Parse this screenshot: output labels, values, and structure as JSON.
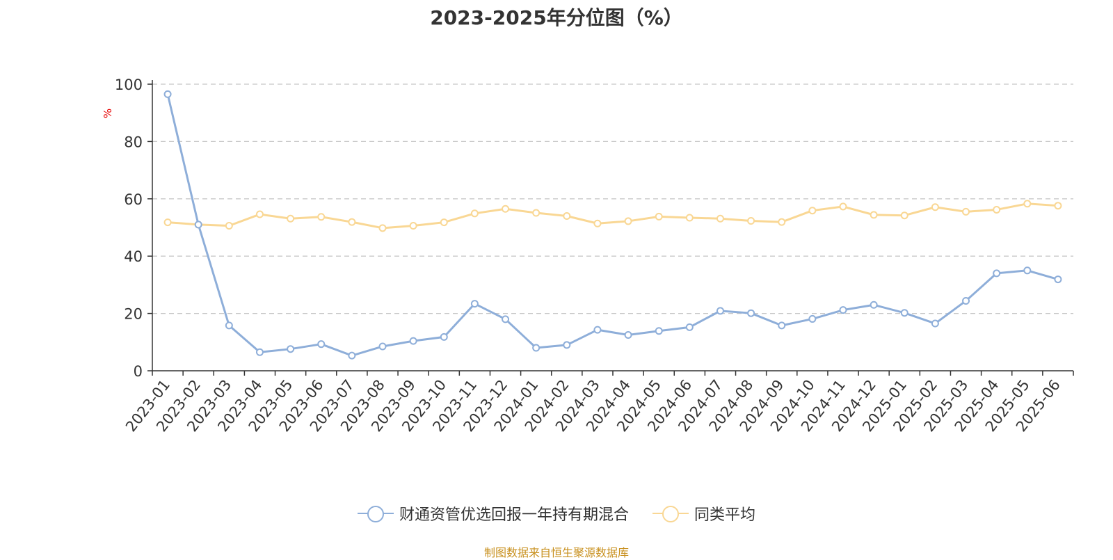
{
  "chart_data": {
    "type": "line",
    "title": "2023-2025年分位图（%）",
    "ylabel": "%",
    "ylim": [
      0,
      100
    ],
    "yticks": [
      0,
      20,
      40,
      60,
      80,
      100
    ],
    "grid": true,
    "legend_position": "bottom",
    "categories": [
      "2023-01",
      "2023-02",
      "2023-03",
      "2023-04",
      "2023-05",
      "2023-06",
      "2023-07",
      "2023-08",
      "2023-09",
      "2023-10",
      "2023-11",
      "2023-12",
      "2024-01",
      "2024-02",
      "2024-03",
      "2024-04",
      "2024-05",
      "2024-06",
      "2024-07",
      "2024-08",
      "2024-09",
      "2024-10",
      "2024-11",
      "2024-12",
      "2025-01",
      "2025-02",
      "2025-03",
      "2025-04",
      "2025-05",
      "2025-06"
    ],
    "series": [
      {
        "name": "财通资管优选回报一年持有期混合",
        "color": "#8eaed9",
        "values": [
          96.5,
          51,
          15.8,
          6.5,
          7.6,
          9.3,
          5.3,
          8.5,
          10.4,
          11.8,
          23.4,
          18,
          8,
          9,
          14.3,
          12.5,
          13.9,
          15.2,
          20.9,
          20.1,
          15.8,
          18.1,
          21.2,
          23,
          20.2,
          16.5,
          24.4,
          34,
          35,
          31.9
        ]
      },
      {
        "name": "同类平均",
        "color": "#f9d794",
        "values": [
          51.8,
          51,
          50.6,
          54.6,
          53.1,
          53.7,
          51.9,
          49.8,
          50.6,
          51.8,
          54.9,
          56.5,
          55.1,
          54,
          51.4,
          52.2,
          53.8,
          53.4,
          53.1,
          52.3,
          51.9,
          55.9,
          57.3,
          54.4,
          54.2,
          57.1,
          55.5,
          56.2,
          58.3,
          57.6
        ]
      }
    ]
  },
  "source_note": "制图数据来自恒生聚源数据库"
}
